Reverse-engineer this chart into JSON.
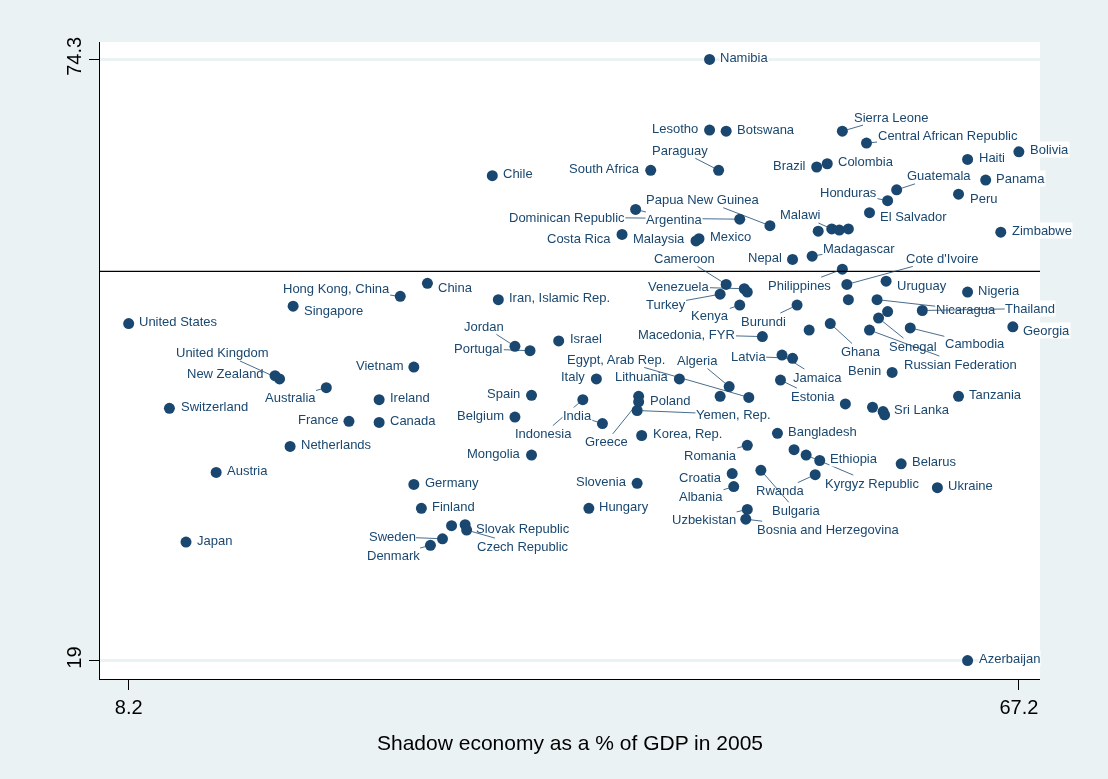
{
  "chart_data": {
    "type": "scatter",
    "xlabel": "Shadow economy as a % of GDP in 2005",
    "xlim": [
      6.3,
      68.6
    ],
    "xticks": [
      8.2,
      67.2
    ],
    "ylim": [
      17.3,
      75.9
    ],
    "yticks": [
      19,
      74.3
    ],
    "grid": "y",
    "marker": "circle",
    "ref_lines": [
      {
        "axis": "y",
        "value": 54.8,
        "color": "#000000"
      }
    ],
    "series": [
      {
        "color": "#1a476f",
        "x": [
          46.7,
          46.7,
          47.8,
          55.5,
          57.1,
          63.8,
          67.2,
          32.3,
          42.8,
          47.3,
          53.8,
          54.5,
          65.0,
          59.1,
          63.2,
          58.5,
          57.3,
          41.8,
          48.7,
          50.7,
          53.9,
          54.8,
          55.3,
          55.9,
          66.0,
          40.9,
          46.0,
          45.8,
          53.5,
          52.2,
          55.5,
          28.0,
          26.2,
          32.7,
          19.1,
          8.2,
          47.8,
          58.4,
          55.8,
          47.4,
          49.0,
          49.2,
          63.8,
          48.7,
          52.5,
          55.9,
          57.8,
          60.8,
          58.5,
          57.9,
          54.7,
          60.0,
          66.8,
          57.3,
          53.3,
          50.2,
          51.5,
          52.2,
          58.8,
          36.7,
          33.8,
          34.8,
          27.1,
          17.9,
          18.2,
          21.3,
          24.8,
          10.9,
          22.8,
          24.8,
          18.9,
          14.0,
          12.0,
          34.9,
          38.3,
          39.2,
          42.0,
          42.0,
          41.9,
          33.8,
          39.6,
          44.7,
          48.0,
          51.4,
          47.4,
          49.3,
          55.7,
          57.5,
          58.2,
          58.3,
          63.2,
          42.2,
          51.2,
          49.2,
          52.3,
          53.1,
          54.0,
          59.4,
          34.9,
          48.2,
          50.1,
          53.7,
          48.3,
          41.9,
          61.8,
          27.1,
          27.6,
          38.7,
          49.2,
          49.1,
          29.6,
          30.5,
          30.6,
          29.0,
          28.2,
          63.8
        ],
        "values": [
          74.3,
          67.8,
          67.7,
          67.7,
          66.6,
          65.1,
          65.8,
          63.6,
          64.1,
          64.1,
          64.4,
          64.7,
          63.2,
          62.3,
          61.9,
          61.3,
          60.2,
          60.5,
          59.6,
          59.0,
          58.5,
          58.7,
          58.6,
          58.7,
          58.4,
          58.2,
          57.8,
          57.6,
          56.2,
          55.9,
          55.0,
          53.7,
          52.5,
          52.2,
          51.6,
          50.0,
          53.6,
          53.9,
          53.6,
          52.7,
          53.2,
          52.9,
          52.9,
          51.7,
          51.7,
          52.2,
          52.2,
          51.2,
          51.1,
          50.5,
          50.0,
          49.6,
          49.7,
          49.4,
          49.4,
          48.8,
          47.1,
          46.8,
          45.5,
          48.4,
          47.9,
          47.5,
          46.0,
          45.2,
          44.9,
          44.1,
          43.0,
          42.2,
          41.0,
          40.9,
          38.7,
          36.3,
          29.9,
          43.4,
          43.0,
          44.9,
          43.3,
          42.8,
          42.0,
          41.4,
          40.8,
          44.9,
          44.2,
          44.8,
          43.3,
          43.2,
          42.6,
          42.3,
          41.9,
          41.6,
          43.3,
          39.7,
          39.9,
          38.8,
          38.4,
          37.9,
          37.4,
          37.1,
          37.9,
          36.2,
          36.5,
          36.1,
          35.0,
          35.3,
          34.9,
          35.2,
          33.0,
          33.0,
          32.9,
          32.0,
          31.4,
          31.5,
          31.0,
          30.2,
          29.6,
          19.0
        ],
        "value_labels": [
          "Namibia",
          "Lesotho",
          "Botswana",
          "Sierra Leone",
          "Central African Republic",
          "Haiti",
          "Bolivia",
          "Chile",
          "South Africa",
          "Paraguay",
          "Brazil",
          "Colombia",
          "Panama",
          "Guatemala",
          "Peru",
          "Honduras",
          "El Salvador",
          "Argentina",
          "Dominican Republic",
          "Papua New Guinea",
          null,
          "Malawi",
          null,
          null,
          "Zimbabwe",
          "Costa Rica",
          "Mexico",
          "Malaysia",
          "Madagascar",
          "Nepal",
          "Philippines",
          "China",
          "Hong Kong, China",
          "Iran, Islamic Rep.",
          "Singapore",
          "United States",
          "Cameroon",
          "Uruguay",
          "Cote d'Ivoire",
          "Turkey",
          "Venezuela",
          null,
          "Nigeria",
          "Kenya",
          "Burundi",
          null,
          "Nicaragua",
          "Thailand",
          null,
          "Senegal",
          "Ghana",
          "Cambodia",
          "Georgia",
          "Russian Federation",
          null,
          "Macedonia, FYR",
          "Jamaica",
          "Latvia",
          "Benin",
          "Israel",
          "Jordan",
          "Portugal",
          "Vietnam",
          "New Zealand",
          "United Kingdom",
          "Australia",
          "Ireland",
          "Switzerland",
          "France",
          "Canada",
          "Netherlands",
          "Austria",
          "Japan",
          "Spain",
          "Indonesia",
          "Italy",
          "Poland",
          "Greece",
          "Yemen, Rep.",
          "Belgium",
          "India",
          "Lithuania",
          "Algeria",
          "Estonia",
          null,
          "Egypt, Arab Rep.",
          null,
          null,
          "Sri Lanka",
          null,
          "Tanzania",
          "Korea, Rep.",
          "Bangladesh",
          "Romania",
          null,
          "Kyrgyz Republic",
          "Ethiopia",
          "Belarus",
          "Mongolia",
          "Croatia",
          "Bulgaria",
          "Rwanda",
          "Albania",
          "Slovenia",
          "Ukraine",
          "Germany",
          "Finland",
          "Hungary",
          "Uzbekistan",
          "Bosnia and Herzegovina",
          null,
          "Slovak Republic",
          "Czech Republic",
          "Sweden",
          "Denmark",
          "Azerbaijan"
        ]
      }
    ]
  }
}
